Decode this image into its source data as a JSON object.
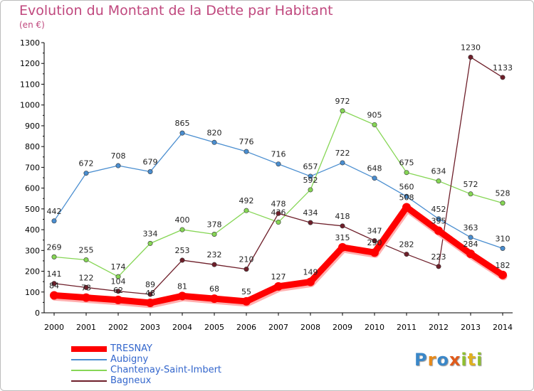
{
  "title": "Evolution du Montant de la Dette par Habitant",
  "unit": "(en €)",
  "logo": {
    "text": "Proxiti",
    "colors": [
      "#3a87c8",
      "#e88a1a",
      "#3a87c8",
      "#e05a1a",
      "#8fbf2f",
      "#e0b020",
      "#8fbf2f"
    ]
  },
  "chart_data": {
    "type": "line",
    "x": [
      "2000",
      "2001",
      "2002",
      "2003",
      "2004",
      "2005",
      "2006",
      "2007",
      "2008",
      "2009",
      "2010",
      "2011",
      "2012",
      "2013",
      "2014"
    ],
    "ylim": [
      0,
      1300
    ],
    "yticks": [
      0,
      100,
      200,
      300,
      400,
      500,
      600,
      700,
      800,
      900,
      1000,
      1100,
      1200,
      1300
    ],
    "grid": false,
    "legend_position": "bottom-left",
    "series": [
      {
        "name": "Aubigny",
        "color": "#4a8ed0",
        "values": [
          442,
          672,
          708,
          679,
          865,
          820,
          776,
          716,
          657,
          722,
          648,
          560,
          452,
          363,
          310
        ]
      },
      {
        "name": "Chantenay-Saint-Imbert",
        "color": "#86d655",
        "values": [
          269,
          255,
          174,
          334,
          400,
          378,
          492,
          436,
          592,
          972,
          905,
          675,
          634,
          572,
          528
        ]
      },
      {
        "name": "Bagneux",
        "color": "#6e1f2a",
        "values": [
          141,
          122,
          104,
          89,
          253,
          232,
          210,
          478,
          434,
          418,
          347,
          282,
          223,
          1230,
          1133
        ]
      },
      {
        "name": "TRESNAY",
        "color": "#ff0000",
        "values": [
          84,
          73,
          62,
          48,
          81,
          68,
          55,
          127,
          149,
          315,
          290,
          508,
          395,
          284,
          182
        ]
      }
    ]
  }
}
